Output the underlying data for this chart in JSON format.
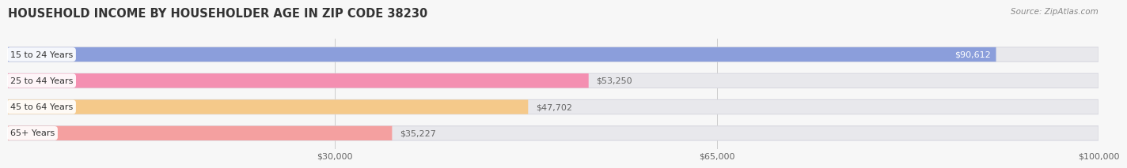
{
  "title": "HOUSEHOLD INCOME BY HOUSEHOLDER AGE IN ZIP CODE 38230",
  "source": "Source: ZipAtlas.com",
  "categories": [
    "15 to 24 Years",
    "25 to 44 Years",
    "45 to 64 Years",
    "65+ Years"
  ],
  "values": [
    90612,
    53250,
    47702,
    35227
  ],
  "labels": [
    "$90,612",
    "$53,250",
    "$47,702",
    "$35,227"
  ],
  "bar_colors": [
    "#8b9edb",
    "#f48fb1",
    "#f5c98a",
    "#f4a0a0"
  ],
  "label_colors": [
    "#ffffff",
    "#666666",
    "#666666",
    "#666666"
  ],
  "bg_color": "#f7f7f7",
  "bar_bg_color": "#e8e8ec",
  "xmax": 100000,
  "xticks": [
    30000,
    65000,
    100000
  ],
  "xticklabels": [
    "$30,000",
    "$65,000",
    "$100,000"
  ],
  "title_fontsize": 10.5,
  "source_fontsize": 7.5,
  "bar_height": 0.55
}
